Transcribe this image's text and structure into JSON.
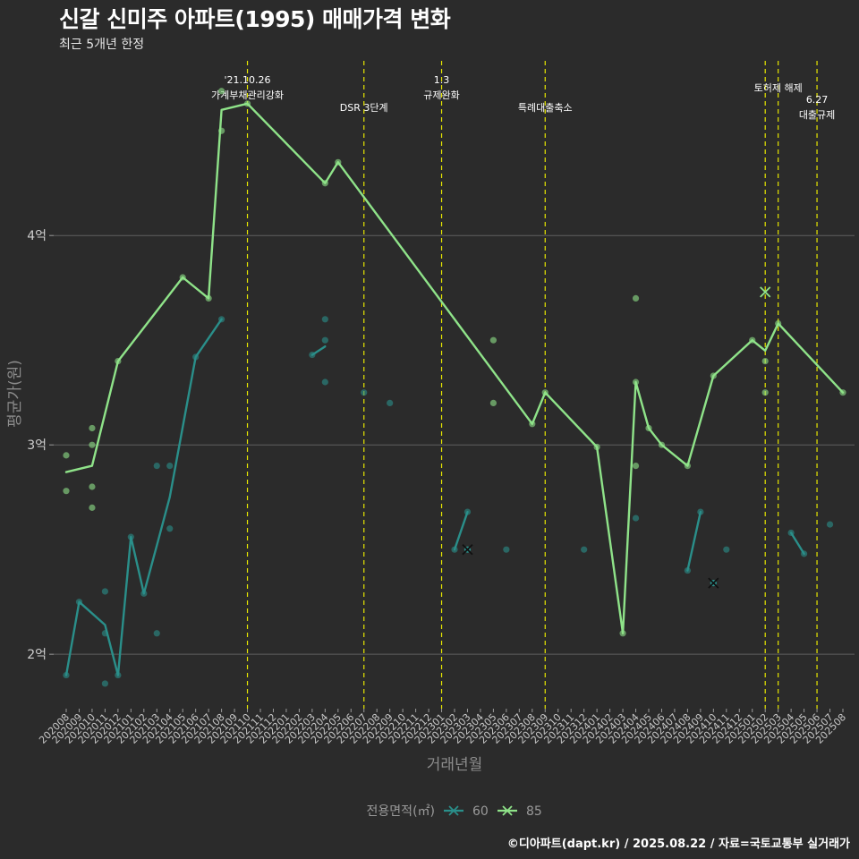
{
  "title": "신갈 신미주 아파트(1995) 매매가격 변화",
  "subtitle": "최근 5개년 한정",
  "footer": "©디아파트(dapt.kr) / 2025.08.22 / 자료=국토교통부 실거래가",
  "colors": {
    "background": "#2b2b2b",
    "grid": "#5f5f5f",
    "event_line": "#e6e600",
    "series_60": "#2a8f8a",
    "series_85": "#8fe389"
  },
  "chart_data": {
    "type": "line",
    "xlabel": "거래년월",
    "ylabel": "평균가(원)",
    "categories": [
      "202008",
      "202009",
      "202010",
      "202011",
      "202012",
      "202101",
      "202102",
      "202103",
      "202104",
      "202105",
      "202106",
      "202107",
      "202108",
      "202109",
      "202110",
      "202111",
      "202112",
      "202201",
      "202202",
      "202203",
      "202204",
      "202205",
      "202206",
      "202207",
      "202208",
      "202209",
      "202210",
      "202211",
      "202212",
      "202301",
      "202302",
      "202303",
      "202304",
      "202305",
      "202306",
      "202307",
      "202308",
      "202309",
      "202310",
      "202311",
      "202312",
      "202401",
      "202402",
      "202403",
      "202404",
      "202405",
      "202406",
      "202407",
      "202408",
      "202409",
      "202410",
      "202411",
      "202412",
      "202501",
      "202502",
      "202503",
      "202504",
      "202505",
      "202506",
      "202507",
      "202508"
    ],
    "y_unit": "억",
    "ylim": [
      1.74,
      4.86
    ],
    "y_ticks": [
      {
        "value": 2,
        "label": "2억"
      },
      {
        "value": 3,
        "label": "3억"
      },
      {
        "value": 4,
        "label": "4억"
      }
    ],
    "events": [
      {
        "x": 14,
        "label": [
          "'21.10.26",
          "가계부채관리강화"
        ]
      },
      {
        "x": 23,
        "label": [
          "DSR 3단계"
        ]
      },
      {
        "x": 29,
        "label": [
          "1.3",
          "규제완화"
        ]
      },
      {
        "x": 37,
        "label": [
          "특례대출축소"
        ]
      },
      {
        "x": 54,
        "label": []
      },
      {
        "x": 55,
        "label": [
          "토허제 해제"
        ]
      },
      {
        "x": 58,
        "label": [
          "6.27",
          "대출규제"
        ]
      }
    ],
    "series": [
      {
        "name": "60",
        "color": "#2a8f8a",
        "line": [
          [
            0,
            1.9
          ],
          [
            1,
            2.25
          ],
          [
            3,
            2.14
          ],
          [
            4,
            1.9
          ],
          [
            5,
            2.56
          ],
          [
            6,
            2.29
          ],
          [
            7,
            2.52
          ],
          [
            8,
            2.75
          ],
          [
            10,
            3.42
          ],
          [
            12,
            3.6
          ],
          null,
          [
            19,
            3.43
          ],
          [
            20,
            3.47
          ],
          null,
          [
            30,
            2.5
          ],
          [
            31,
            2.68
          ],
          null,
          [
            48,
            2.4
          ],
          [
            49,
            2.68
          ],
          null,
          [
            56,
            2.58
          ],
          [
            57,
            2.48
          ]
        ],
        "points": [
          [
            0,
            1.9
          ],
          [
            1,
            2.25
          ],
          [
            3,
            2.3
          ],
          [
            3,
            2.1
          ],
          [
            3,
            1.86
          ],
          [
            4,
            1.9
          ],
          [
            5,
            2.56
          ],
          [
            6,
            2.29
          ],
          [
            7,
            2.9
          ],
          [
            7,
            2.1
          ],
          [
            8,
            2.9
          ],
          [
            8,
            2.6
          ],
          [
            10,
            3.42
          ],
          [
            12,
            3.6
          ],
          [
            19,
            3.43
          ],
          [
            20,
            3.6
          ],
          [
            20,
            3.5
          ],
          [
            20,
            3.3
          ],
          [
            23,
            3.25
          ],
          [
            25,
            3.2
          ],
          [
            30,
            2.5
          ],
          [
            31,
            2.68
          ],
          [
            34,
            2.5
          ],
          [
            40,
            2.5
          ],
          [
            44,
            2.65
          ],
          [
            48,
            2.4
          ],
          [
            49,
            2.68
          ],
          [
            51,
            2.5
          ],
          [
            56,
            2.58
          ],
          [
            57,
            2.48
          ],
          [
            59,
            2.62
          ]
        ],
        "cancelled": [
          [
            31,
            2.5
          ],
          [
            50,
            2.34
          ]
        ]
      },
      {
        "name": "85",
        "color": "#8fe389",
        "line": [
          [
            0,
            2.87
          ],
          [
            2,
            2.9
          ],
          [
            4,
            3.4
          ],
          [
            9,
            3.8
          ],
          [
            11,
            3.7
          ],
          [
            12,
            4.6
          ],
          [
            14,
            4.63
          ],
          [
            20,
            4.25
          ],
          [
            21,
            4.35
          ],
          [
            36,
            3.1
          ],
          [
            37,
            3.25
          ],
          [
            41,
            2.99
          ],
          [
            43,
            2.1
          ],
          [
            44,
            3.3
          ],
          [
            45,
            3.08
          ],
          [
            46,
            3.0
          ],
          [
            48,
            2.9
          ],
          [
            50,
            3.33
          ],
          [
            53,
            3.5
          ],
          [
            54,
            3.45
          ],
          [
            55,
            3.58
          ],
          [
            60,
            3.25
          ]
        ],
        "points": [
          [
            0,
            2.95
          ],
          [
            0,
            2.78
          ],
          [
            2,
            3.08
          ],
          [
            2,
            3.0
          ],
          [
            2,
            2.8
          ],
          [
            2,
            2.7
          ],
          [
            4,
            3.4
          ],
          [
            9,
            3.8
          ],
          [
            11,
            3.7
          ],
          [
            12,
            4.69
          ],
          [
            12,
            4.5
          ],
          [
            14,
            4.63
          ],
          [
            20,
            4.25
          ],
          [
            21,
            4.35
          ],
          [
            33,
            3.5
          ],
          [
            33,
            3.2
          ],
          [
            36,
            3.1
          ],
          [
            37,
            3.25
          ],
          [
            41,
            2.99
          ],
          [
            43,
            2.1
          ],
          [
            44,
            3.7
          ],
          [
            44,
            3.3
          ],
          [
            44,
            2.9
          ],
          [
            45,
            3.08
          ],
          [
            46,
            3.0
          ],
          [
            48,
            2.9
          ],
          [
            50,
            3.33
          ],
          [
            53,
            3.5
          ],
          [
            54,
            3.4
          ],
          [
            54,
            3.25
          ],
          [
            55,
            3.58
          ],
          [
            60,
            3.25
          ]
        ],
        "cancelled": [
          [
            54,
            3.73
          ]
        ]
      }
    ],
    "legend": {
      "title": "전용면적(㎡)",
      "placement": "bottom-center"
    }
  }
}
